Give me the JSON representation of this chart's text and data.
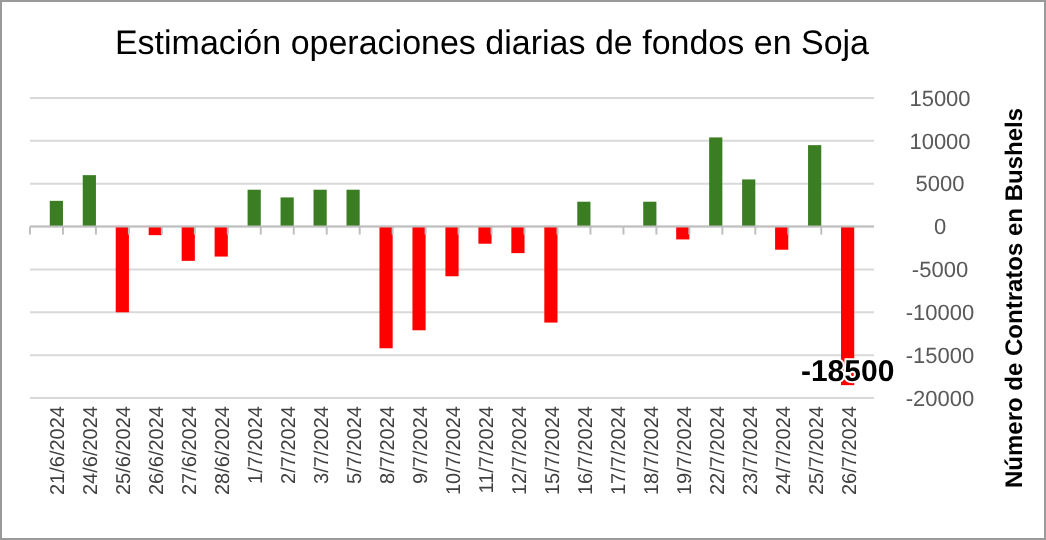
{
  "chart_data": {
    "type": "bar",
    "title": "Estimación operaciones diarias de fondos en Soja",
    "ylabel": "Número de Contratos en Bushels",
    "categories": [
      "21/6/2024",
      "24/6/2024",
      "25/6/2024",
      "26/6/2024",
      "27/6/2024",
      "28/6/2024",
      "1/7/2024",
      "2/7/2024",
      "3/7/2024",
      "5/7/2024",
      "8/7/2024",
      "9/7/2024",
      "10/7/2024",
      "11/7/2024",
      "12/7/2024",
      "15/7/2024",
      "16/7/2024",
      "17/7/2024",
      "18/7/2024",
      "19/7/2024",
      "22/7/2024",
      "23/7/2024",
      "24/7/2024",
      "25/7/2024",
      "26/7/2024"
    ],
    "values": [
      3000,
      6000,
      -10000,
      -1000,
      -4000,
      -3500,
      4300,
      3400,
      4300,
      4300,
      -14200,
      -12100,
      -5800,
      -2000,
      -3100,
      -11200,
      2900,
      0,
      2900,
      -1500,
      10400,
      5500,
      -2700,
      9500,
      -18500
    ],
    "colors": [
      "#3a7d22",
      "#3a7d22",
      "#ff0000",
      "#ff0000",
      "#ff0000",
      "#ff0000",
      "#3a7d22",
      "#3a7d22",
      "#3a7d22",
      "#3a7d22",
      "#ff0000",
      "#ff0000",
      "#ff0000",
      "#ff0000",
      "#ff0000",
      "#ff0000",
      "#3a7d22",
      "#3a7d22",
      "#3a7d22",
      "#ff0000",
      "#3a7d22",
      "#3a7d22",
      "#ff0000",
      "#3a7d22",
      "#ff0000"
    ],
    "value_labels": [
      null,
      null,
      null,
      null,
      null,
      null,
      null,
      null,
      null,
      null,
      null,
      null,
      null,
      null,
      null,
      null,
      null,
      null,
      null,
      null,
      null,
      null,
      null,
      null,
      "-18500"
    ],
    "ylim": [
      -20000,
      15000
    ],
    "yticks": [
      -20000,
      -15000,
      -10000,
      -5000,
      0,
      5000,
      10000,
      15000
    ],
    "grid": "y"
  }
}
